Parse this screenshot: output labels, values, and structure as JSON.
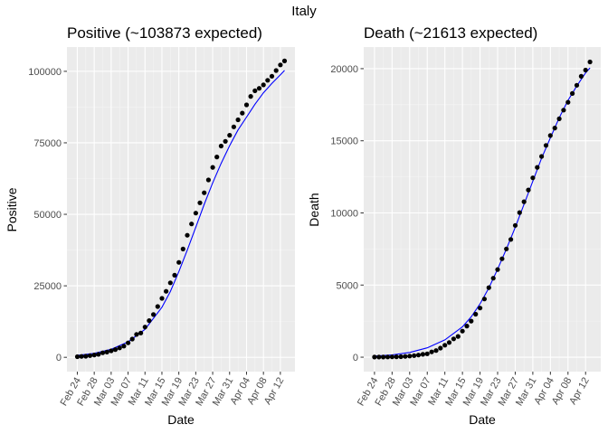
{
  "suptitle": "Italy",
  "colors": {
    "panel_bg": "#ebebeb",
    "grid_major": "#ffffff",
    "points": "#000000",
    "fit_line": "#0000ff",
    "tick_text": "#4d4d4d"
  },
  "chart_data": [
    {
      "type": "scatter",
      "title": "Positive (~103873 expected)",
      "xlabel": "Date",
      "ylabel": "Positive",
      "x_tick_labels": [
        "Feb 24",
        "Feb 28",
        "Mar 03",
        "Mar 07",
        "Mar 11",
        "Mar 15",
        "Mar 19",
        "Mar 23",
        "Mar 27",
        "Mar 31",
        "Apr 04",
        "Apr 08",
        "Apr 12"
      ],
      "y_ticks": [
        0,
        25000,
        50000,
        75000,
        100000
      ],
      "y_tick_labels": [
        "0",
        "25000",
        "50000",
        "75000",
        "100000"
      ],
      "ylim": [
        -5000,
        108500
      ],
      "grid": true,
      "series": [
        {
          "kind": "points",
          "x": [
            "Feb 24",
            "Feb 25",
            "Feb 26",
            "Feb 27",
            "Feb 28",
            "Feb 29",
            "Mar 01",
            "Mar 02",
            "Mar 03",
            "Mar 04",
            "Mar 05",
            "Mar 06",
            "Mar 07",
            "Mar 08",
            "Mar 09",
            "Mar 10",
            "Mar 11",
            "Mar 12",
            "Mar 13",
            "Mar 14",
            "Mar 15",
            "Mar 16",
            "Mar 17",
            "Mar 18",
            "Mar 19",
            "Mar 20",
            "Mar 21",
            "Mar 22",
            "Mar 23",
            "Mar 24",
            "Mar 25",
            "Mar 26",
            "Mar 27",
            "Mar 28",
            "Mar 29",
            "Mar 30",
            "Mar 31",
            "Apr 01",
            "Apr 02",
            "Apr 03",
            "Apr 04",
            "Apr 05",
            "Apr 06",
            "Apr 07",
            "Apr 08",
            "Apr 09",
            "Apr 10",
            "Apr 11",
            "Apr 12",
            "Apr 13"
          ],
          "y": [
            221,
            311,
            385,
            588,
            821,
            1049,
            1577,
            1835,
            2263,
            2706,
            3296,
            3916,
            5061,
            6387,
            7985,
            8514,
            10590,
            12839,
            14955,
            17750,
            20603,
            23073,
            26062,
            28710,
            33190,
            37860,
            42681,
            46638,
            50418,
            54030,
            57521,
            62013,
            66414,
            70065,
            73880,
            75528,
            77635,
            80572,
            83049,
            85388,
            88274,
            91246,
            93187,
            94067,
            95262,
            96877,
            98273,
            100269,
            102253,
            103616
          ]
        },
        {
          "kind": "line",
          "x": [
            "Feb 24",
            "Feb 28",
            "Mar 03",
            "Mar 07",
            "Mar 11",
            "Mar 15",
            "Mar 17",
            "Mar 19",
            "Mar 21",
            "Mar 23",
            "Mar 25",
            "Mar 27",
            "Mar 29",
            "Mar 31",
            "Apr 02",
            "Apr 04",
            "Apr 06",
            "Apr 08",
            "Apr 10",
            "Apr 12",
            "Apr 13"
          ],
          "y": [
            700,
            1400,
            2800,
            5400,
            9800,
            17500,
            23000,
            30000,
            37500,
            45500,
            53500,
            61000,
            67800,
            74000,
            79500,
            84000,
            88500,
            92500,
            95800,
            98800,
            100300
          ]
        }
      ]
    },
    {
      "type": "scatter",
      "title": "Death (~21613 expected)",
      "xlabel": "Date",
      "ylabel": "Death",
      "x_tick_labels": [
        "Feb 24",
        "Feb 28",
        "Mar 03",
        "Mar 07",
        "Mar 11",
        "Mar 15",
        "Mar 19",
        "Mar 23",
        "Mar 27",
        "Mar 31",
        "Apr 04",
        "Apr 08",
        "Apr 12"
      ],
      "y_ticks": [
        0,
        5000,
        10000,
        15000,
        20000
      ],
      "y_tick_labels": [
        "0",
        "5000",
        "10000",
        "15000",
        "20000"
      ],
      "ylim": [
        -1000,
        21500
      ],
      "grid": true,
      "series": [
        {
          "kind": "points",
          "x": [
            "Feb 24",
            "Feb 25",
            "Feb 26",
            "Feb 27",
            "Feb 28",
            "Feb 29",
            "Mar 01",
            "Mar 02",
            "Mar 03",
            "Mar 04",
            "Mar 05",
            "Mar 06",
            "Mar 07",
            "Mar 08",
            "Mar 09",
            "Mar 10",
            "Mar 11",
            "Mar 12",
            "Mar 13",
            "Mar 14",
            "Mar 15",
            "Mar 16",
            "Mar 17",
            "Mar 18",
            "Mar 19",
            "Mar 20",
            "Mar 21",
            "Mar 22",
            "Mar 23",
            "Mar 24",
            "Mar 25",
            "Mar 26",
            "Mar 27",
            "Mar 28",
            "Mar 29",
            "Mar 30",
            "Mar 31",
            "Apr 01",
            "Apr 02",
            "Apr 03",
            "Apr 04",
            "Apr 05",
            "Apr 06",
            "Apr 07",
            "Apr 08",
            "Apr 09",
            "Apr 10",
            "Apr 11",
            "Apr 12",
            "Apr 13"
          ],
          "y": [
            7,
            10,
            12,
            17,
            21,
            29,
            34,
            52,
            79,
            107,
            148,
            197,
            233,
            366,
            463,
            631,
            827,
            1016,
            1266,
            1441,
            1809,
            2158,
            2503,
            2978,
            3405,
            4032,
            4825,
            5476,
            6077,
            6820,
            7503,
            8165,
            9134,
            10023,
            10779,
            11591,
            12428,
            13155,
            13915,
            14681,
            15362,
            15887,
            16523,
            17127,
            17669,
            18279,
            18849,
            19468,
            19899,
            20465
          ]
        },
        {
          "kind": "line",
          "x": [
            "Feb 24",
            "Feb 28",
            "Mar 03",
            "Mar 07",
            "Mar 11",
            "Mar 15",
            "Mar 17",
            "Mar 19",
            "Mar 21",
            "Mar 23",
            "Mar 25",
            "Mar 27",
            "Mar 29",
            "Mar 31",
            "Apr 02",
            "Apr 04",
            "Apr 06",
            "Apr 08",
            "Apr 10",
            "Apr 12",
            "Apr 13"
          ],
          "y": [
            80,
            160,
            330,
            650,
            1200,
            2100,
            2800,
            3700,
            4800,
            6100,
            7500,
            9000,
            10600,
            12200,
            13800,
            15200,
            16600,
            17800,
            18800,
            19700,
            20050
          ]
        }
      ]
    }
  ]
}
